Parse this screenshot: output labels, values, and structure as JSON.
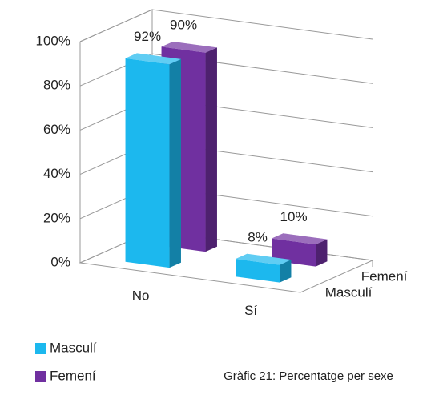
{
  "chart_data": {
    "type": "bar3d",
    "categories": [
      "No",
      "Sí"
    ],
    "series": [
      {
        "name": "Masculí",
        "color": "#1cb8ee",
        "values": [
          92,
          8
        ],
        "value_labels": [
          "92%",
          "8%"
        ]
      },
      {
        "name": "Femení",
        "color": "#7030a0",
        "values": [
          90,
          10
        ],
        "value_labels": [
          "90%",
          "10%"
        ]
      }
    ],
    "ylim": [
      0,
      100
    ],
    "yticks": [
      {
        "value": 0,
        "label": "0%"
      },
      {
        "value": 20,
        "label": "20%"
      },
      {
        "value": 40,
        "label": "40%"
      },
      {
        "value": 60,
        "label": "60%"
      },
      {
        "value": 80,
        "label": "80%"
      },
      {
        "value": 100,
        "label": "100%"
      }
    ],
    "grid": true,
    "caption": "Gràfic 21: Percentatge per sexe"
  }
}
